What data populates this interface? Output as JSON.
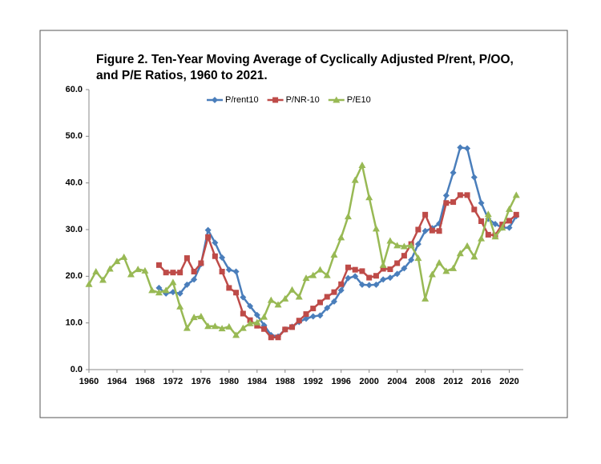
{
  "chart_data": {
    "type": "line",
    "title": [
      "Figure 2.  Ten-Year Moving Average of Cyclically Adjusted P/rent, P/OO,",
      "and P/E Ratios, 1960 to 2021."
    ],
    "x": [
      1960,
      1961,
      1962,
      1963,
      1964,
      1965,
      1966,
      1967,
      1968,
      1969,
      1970,
      1971,
      1972,
      1973,
      1974,
      1975,
      1976,
      1977,
      1978,
      1979,
      1980,
      1981,
      1982,
      1983,
      1984,
      1985,
      1986,
      1987,
      1988,
      1989,
      1990,
      1991,
      1992,
      1993,
      1994,
      1995,
      1996,
      1997,
      1998,
      1999,
      2000,
      2001,
      2002,
      2003,
      2004,
      2005,
      2006,
      2007,
      2008,
      2009,
      2010,
      2011,
      2012,
      2013,
      2014,
      2015,
      2016,
      2017,
      2018,
      2019,
      2020,
      2021
    ],
    "series": [
      {
        "name": "P/rent10",
        "color": "#4a7ebb",
        "marker": "diamond",
        "values": [
          null,
          null,
          null,
          null,
          null,
          null,
          null,
          null,
          null,
          null,
          17.5,
          16.3,
          16.6,
          16.3,
          18.2,
          19.3,
          22.6,
          29.9,
          27.2,
          24,
          21.4,
          21,
          15.5,
          13.6,
          11.7,
          9.5,
          7.4,
          7.1,
          8.6,
          9.2,
          10.2,
          10.9,
          11.4,
          11.6,
          13.2,
          14.6,
          17,
          19.6,
          20,
          18.2,
          18.1,
          18.2,
          19.3,
          19.7,
          20.5,
          21.7,
          23.5,
          26.9,
          29.7,
          30.3,
          31.3,
          37.3,
          42.2,
          47.6,
          47.4,
          41.2,
          35.7,
          32.3,
          31.2,
          30.4,
          30.4,
          32.9
        ]
      },
      {
        "name": "P/NR-10",
        "color": "#be4b48",
        "marker": "square",
        "values": [
          null,
          null,
          null,
          null,
          null,
          null,
          null,
          null,
          null,
          null,
          22.4,
          20.8,
          20.8,
          20.8,
          23.9,
          21,
          22.8,
          28.4,
          24.3,
          21,
          17.5,
          16.5,
          12,
          10.6,
          9.4,
          8.7,
          6.9,
          6.9,
          8.6,
          9.1,
          10.5,
          11.9,
          13.1,
          14.4,
          15.6,
          16.6,
          18.3,
          21.9,
          21.4,
          21.1,
          19.7,
          20.1,
          21.6,
          21.5,
          22.8,
          24.4,
          26.9,
          30,
          33.2,
          29.8,
          29.7,
          35.7,
          35.9,
          37.4,
          37.4,
          34.3,
          31.8,
          28.9,
          28.8,
          31.1,
          31.9,
          33.2
        ]
      },
      {
        "name": "P/E10",
        "color": "#98b954",
        "marker": "triangle",
        "values": [
          18.3,
          21,
          19.2,
          21.6,
          23.2,
          24.1,
          20.4,
          21.5,
          21.2,
          17,
          16.5,
          17,
          18.7,
          13.5,
          8.9,
          11.2,
          11.4,
          9.3,
          9.3,
          8.8,
          9.2,
          7.4,
          8.9,
          9.9,
          10.1,
          11.3,
          14.9,
          13.9,
          15.2,
          17.1,
          15.6,
          19.6,
          20.2,
          21.4,
          20.2,
          24.6,
          28.3,
          32.8,
          40.6,
          43.8,
          36.9,
          30.2,
          22.4,
          27.6,
          26.6,
          26.4,
          26.6,
          23.9,
          15.2,
          20.4,
          22.9,
          21.1,
          21.7,
          24.9,
          26.5,
          24.2,
          28.1,
          33.3,
          28.5,
          30.4,
          34.4,
          37.4
        ]
      }
    ],
    "xlim": [
      1960,
      2022
    ],
    "xticks": [
      1960,
      1964,
      1968,
      1972,
      1976,
      1980,
      1984,
      1988,
      1992,
      1996,
      2000,
      2004,
      2008,
      2012,
      2016,
      2020
    ],
    "ylim": [
      0,
      60
    ],
    "yticks": [
      {
        "value": 0,
        "label": "0.0"
      },
      {
        "value": 10,
        "label": "10.0"
      },
      {
        "value": 20,
        "label": "20.0"
      },
      {
        "value": 30,
        "label": "30.0"
      },
      {
        "value": 40,
        "label": "40.0"
      },
      {
        "value": 50,
        "label": "50.0"
      },
      {
        "value": 60,
        "label": "60.0"
      }
    ],
    "grid": false,
    "legend": "top"
  }
}
